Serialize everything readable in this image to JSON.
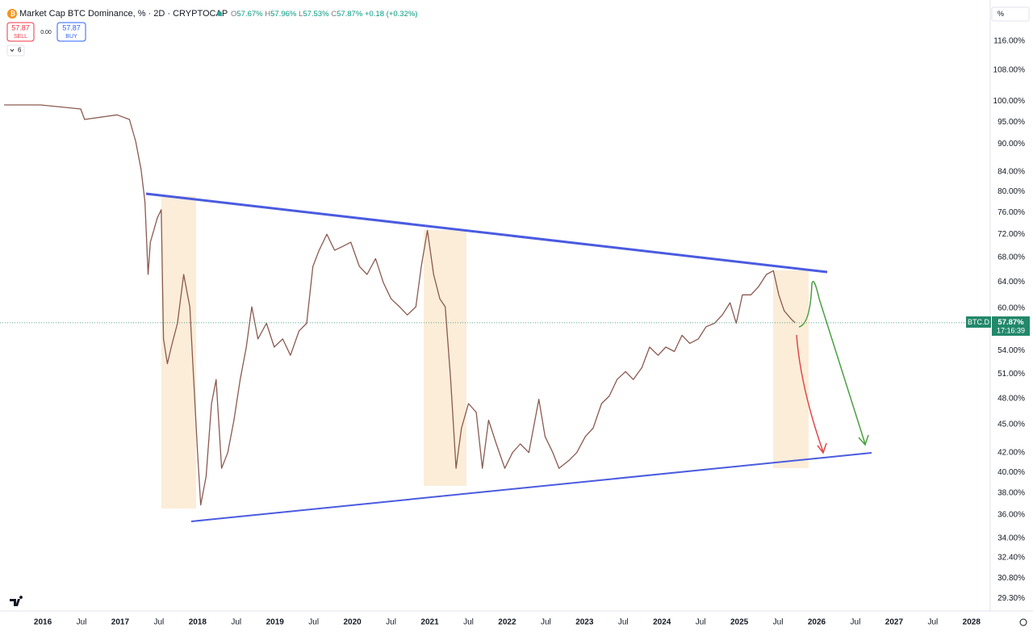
{
  "header": {
    "title": "Market Cap BTC Dominance, % · 2D · CRYPTOCAP",
    "ohlc": [
      {
        "label": "O",
        "value": "57.67%"
      },
      {
        "label": "H",
        "value": "57.96%"
      },
      {
        "label": "L",
        "value": "57.53%"
      },
      {
        "label": "C",
        "value": "57.87%"
      }
    ],
    "change": "+0.18 (+0.32%)",
    "sell": {
      "price": "57.87",
      "label": "SELL"
    },
    "spread": "0.00",
    "buy": {
      "price": "57.87",
      "label": "BUY"
    },
    "indicator_count": "6",
    "scale_button": "%",
    "price_label": "BTC.D",
    "last_price": "57.87%",
    "countdown": "17:16:39"
  },
  "chart_data": {
    "type": "line",
    "log_scale": true,
    "grid": false,
    "xlim": [
      2015.447,
      2028.221
    ],
    "ylim": [
      28.4,
      128.4
    ],
    "xticks": [
      {
        "value": 2016,
        "label": "2016"
      },
      {
        "value": 2016.5,
        "label": "Jul"
      },
      {
        "value": 2017,
        "label": "2017"
      },
      {
        "value": 2017.5,
        "label": "Jul"
      },
      {
        "value": 2018,
        "label": "2018"
      },
      {
        "value": 2018.5,
        "label": "Jul"
      },
      {
        "value": 2019,
        "label": "2019"
      },
      {
        "value": 2019.5,
        "label": "Jul"
      },
      {
        "value": 2020,
        "label": "2020"
      },
      {
        "value": 2020.5,
        "label": "Jul"
      },
      {
        "value": 2021,
        "label": "2021"
      },
      {
        "value": 2021.5,
        "label": "Jul"
      },
      {
        "value": 2022,
        "label": "2022"
      },
      {
        "value": 2022.5,
        "label": "Jul"
      },
      {
        "value": 2023,
        "label": "2023"
      },
      {
        "value": 2023.5,
        "label": "Jul"
      },
      {
        "value": 2024,
        "label": "2024"
      },
      {
        "value": 2024.5,
        "label": "Jul"
      },
      {
        "value": 2025,
        "label": "2025"
      },
      {
        "value": 2025.5,
        "label": "Jul"
      },
      {
        "value": 2026,
        "label": "2026"
      },
      {
        "value": 2026.5,
        "label": "Jul"
      },
      {
        "value": 2027,
        "label": "2027"
      },
      {
        "value": 2027.5,
        "label": "Jul"
      },
      {
        "value": 2028,
        "label": "2028"
      }
    ],
    "yticks": [
      {
        "value": 116,
        "label": "116.00%"
      },
      {
        "value": 108,
        "label": "108.00%"
      },
      {
        "value": 100,
        "label": "100.00%"
      },
      {
        "value": 95,
        "label": "95.00%"
      },
      {
        "value": 90,
        "label": "90.00%"
      },
      {
        "value": 84,
        "label": "84.00%"
      },
      {
        "value": 80,
        "label": "80.00%"
      },
      {
        "value": 76,
        "label": "76.00%"
      },
      {
        "value": 72,
        "label": "72.00%"
      },
      {
        "value": 68,
        "label": "68.00%"
      },
      {
        "value": 64,
        "label": "64.00%"
      },
      {
        "value": 60,
        "label": "60.00%"
      },
      {
        "value": 54,
        "label": "54.00%"
      },
      {
        "value": 51,
        "label": "51.00%"
      },
      {
        "value": 48,
        "label": "48.00%"
      },
      {
        "value": 45,
        "label": "45.00%"
      },
      {
        "value": 42,
        "label": "42.00%"
      },
      {
        "value": 40,
        "label": "40.00%"
      },
      {
        "value": 38,
        "label": "38.00%"
      },
      {
        "value": 36,
        "label": "36.00%"
      },
      {
        "value": 34,
        "label": "34.00%"
      },
      {
        "value": 32.4,
        "label": "32.40%"
      },
      {
        "value": 30.8,
        "label": "30.80%"
      },
      {
        "value": 29.3,
        "label": "29.30%"
      }
    ],
    "x": [
      2015.5,
      2015.97,
      2016.49,
      2016.54,
      2016.96,
      2017.12,
      2017.2,
      2017.27,
      2017.32,
      2017.36,
      2017.39,
      2017.48,
      2017.53,
      2017.56,
      2017.61,
      2017.66,
      2017.74,
      2017.82,
      2017.9,
      2017.95,
      2018.0,
      2018.04,
      2018.11,
      2018.18,
      2018.24,
      2018.31,
      2018.39,
      2018.47,
      2018.55,
      2018.63,
      2018.7,
      2018.78,
      2018.89,
      2018.99,
      2019.1,
      2019.2,
      2019.31,
      2019.41,
      2019.49,
      2019.57,
      2019.67,
      2019.77,
      2019.88,
      2019.98,
      2020.09,
      2020.19,
      2020.3,
      2020.4,
      2020.5,
      2020.61,
      2020.71,
      2020.82,
      2020.89,
      2020.97,
      2021.05,
      2021.13,
      2021.2,
      2021.27,
      2021.34,
      2021.41,
      2021.5,
      2021.6,
      2021.68,
      2021.76,
      2021.86,
      2021.97,
      2022.07,
      2022.17,
      2022.28,
      2022.41,
      2022.49,
      2022.59,
      2022.67,
      2022.8,
      2022.9,
      2023.01,
      2023.11,
      2023.22,
      2023.32,
      2023.42,
      2023.53,
      2023.63,
      2023.74,
      2023.84,
      2023.95,
      2024.05,
      2024.16,
      2024.26,
      2024.36,
      2024.47,
      2024.57,
      2024.68,
      2024.78,
      2024.88,
      2024.96,
      2025.04,
      2025.15,
      2025.25,
      2025.35,
      2025.44,
      2025.51,
      2025.58,
      2025.67,
      2025.72
    ],
    "series": [
      {
        "name": "BTC.D",
        "color": "#8a5a50",
        "values": [
          99.1,
          99.1,
          98.1,
          95.6,
          96.7,
          95.6,
          90.6,
          84.5,
          78.0,
          65.2,
          70.6,
          75.0,
          76.5,
          55.6,
          52.3,
          54.5,
          57.8,
          65.2,
          60.2,
          50.3,
          42.0,
          36.9,
          39.6,
          47.4,
          50.3,
          40.4,
          42.0,
          45.5,
          50.3,
          54.5,
          60.2,
          55.6,
          57.8,
          54.5,
          55.6,
          53.4,
          56.7,
          57.8,
          66.5,
          69.2,
          72.0,
          69.2,
          69.9,
          70.6,
          66.5,
          65.2,
          67.8,
          63.9,
          61.4,
          60.2,
          59.0,
          60.2,
          66.5,
          72.7,
          65.2,
          61.4,
          60.2,
          50.3,
          40.4,
          44.6,
          47.4,
          46.4,
          40.4,
          45.5,
          42.9,
          40.4,
          42.0,
          42.9,
          42.0,
          47.9,
          43.7,
          42.0,
          40.4,
          41.2,
          42.0,
          43.7,
          44.6,
          47.4,
          48.3,
          50.3,
          51.3,
          50.3,
          51.8,
          54.5,
          53.4,
          54.5,
          53.9,
          56.1,
          55.0,
          55.6,
          57.3,
          57.8,
          59.0,
          60.8,
          57.8,
          62.0,
          62.0,
          63.3,
          65.2,
          65.8,
          62.0,
          59.6,
          58.4,
          57.87
        ]
      }
    ]
  }
}
